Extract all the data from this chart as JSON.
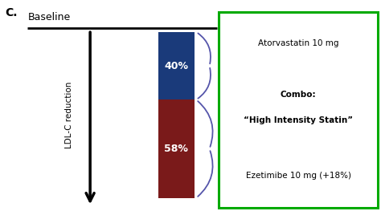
{
  "title_letter": "C.",
  "baseline_label": "Baseline",
  "bar_blue_color": "#1a3a7a",
  "bar_red_color": "#7a1a1a",
  "bar_blue_pct": "40%",
  "bar_red_pct": "58%",
  "blue_pct_value": 40,
  "red_pct_value": 58,
  "arrow_label": "LDL-C reduction",
  "label1": "Atorvastatin 10 mg",
  "label2_line1": "Combo:",
  "label2_line2": "“High Intensity Statin”",
  "label3": "Ezetimibe 10 mg (+18%)",
  "box_color": "#00aa00",
  "background_color": "#ffffff",
  "text_color_white": "#ffffff",
  "text_color_black": "#000000",
  "brace_color": "#5555aa"
}
